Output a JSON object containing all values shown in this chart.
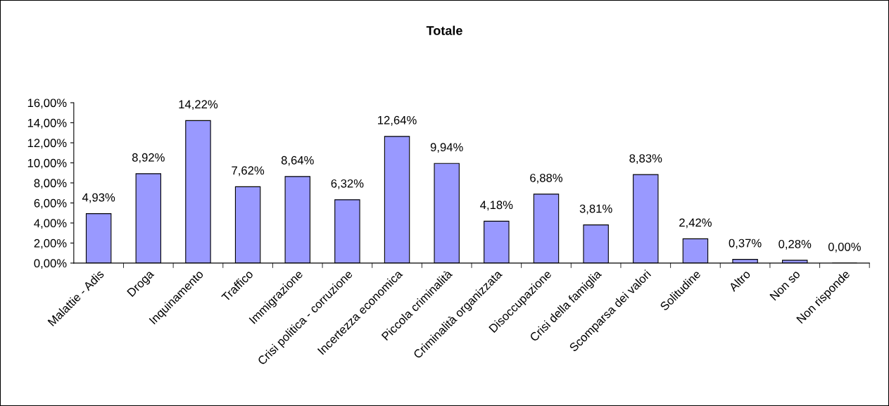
{
  "chart_data": {
    "type": "bar",
    "title": "Totale",
    "categories": [
      "Malattie - Adis",
      "Droga",
      "Inquinamento",
      "Traffico",
      "Immigrazione",
      "Crisi politica - corruzione",
      "Incertezza economica",
      "Piccola criminalità",
      "Criminalità organizzata",
      "Disoccupazione",
      "Crisi della famiglia",
      "Scomparsa dei valori",
      "Solitudine",
      "Altro",
      "Non so",
      "Non risponde"
    ],
    "values": [
      4.93,
      8.92,
      14.22,
      7.62,
      8.64,
      6.32,
      12.64,
      9.94,
      4.18,
      6.88,
      3.81,
      8.83,
      2.42,
      0.37,
      0.28,
      0.0
    ],
    "value_labels": [
      "4,93%",
      "8,92%",
      "14,22%",
      "7,62%",
      "8,64%",
      "6,32%",
      "12,64%",
      "9,94%",
      "4,18%",
      "6,88%",
      "3,81%",
      "8,83%",
      "2,42%",
      "0,37%",
      "0,28%",
      "0,00%"
    ],
    "color": "#9999ff",
    "ylim": [
      0,
      16
    ],
    "yticks": [
      {
        "value": 0,
        "label": "0,00%"
      },
      {
        "value": 2,
        "label": "2,00%"
      },
      {
        "value": 4,
        "label": "4,00%"
      },
      {
        "value": 6,
        "label": "6,00%"
      },
      {
        "value": 8,
        "label": "8,00%"
      },
      {
        "value": 10,
        "label": "10,00%"
      },
      {
        "value": 12,
        "label": "12,00%"
      },
      {
        "value": 14,
        "label": "14,00%"
      },
      {
        "value": 16,
        "label": "16,00%"
      }
    ],
    "grid": false,
    "legend": false
  }
}
